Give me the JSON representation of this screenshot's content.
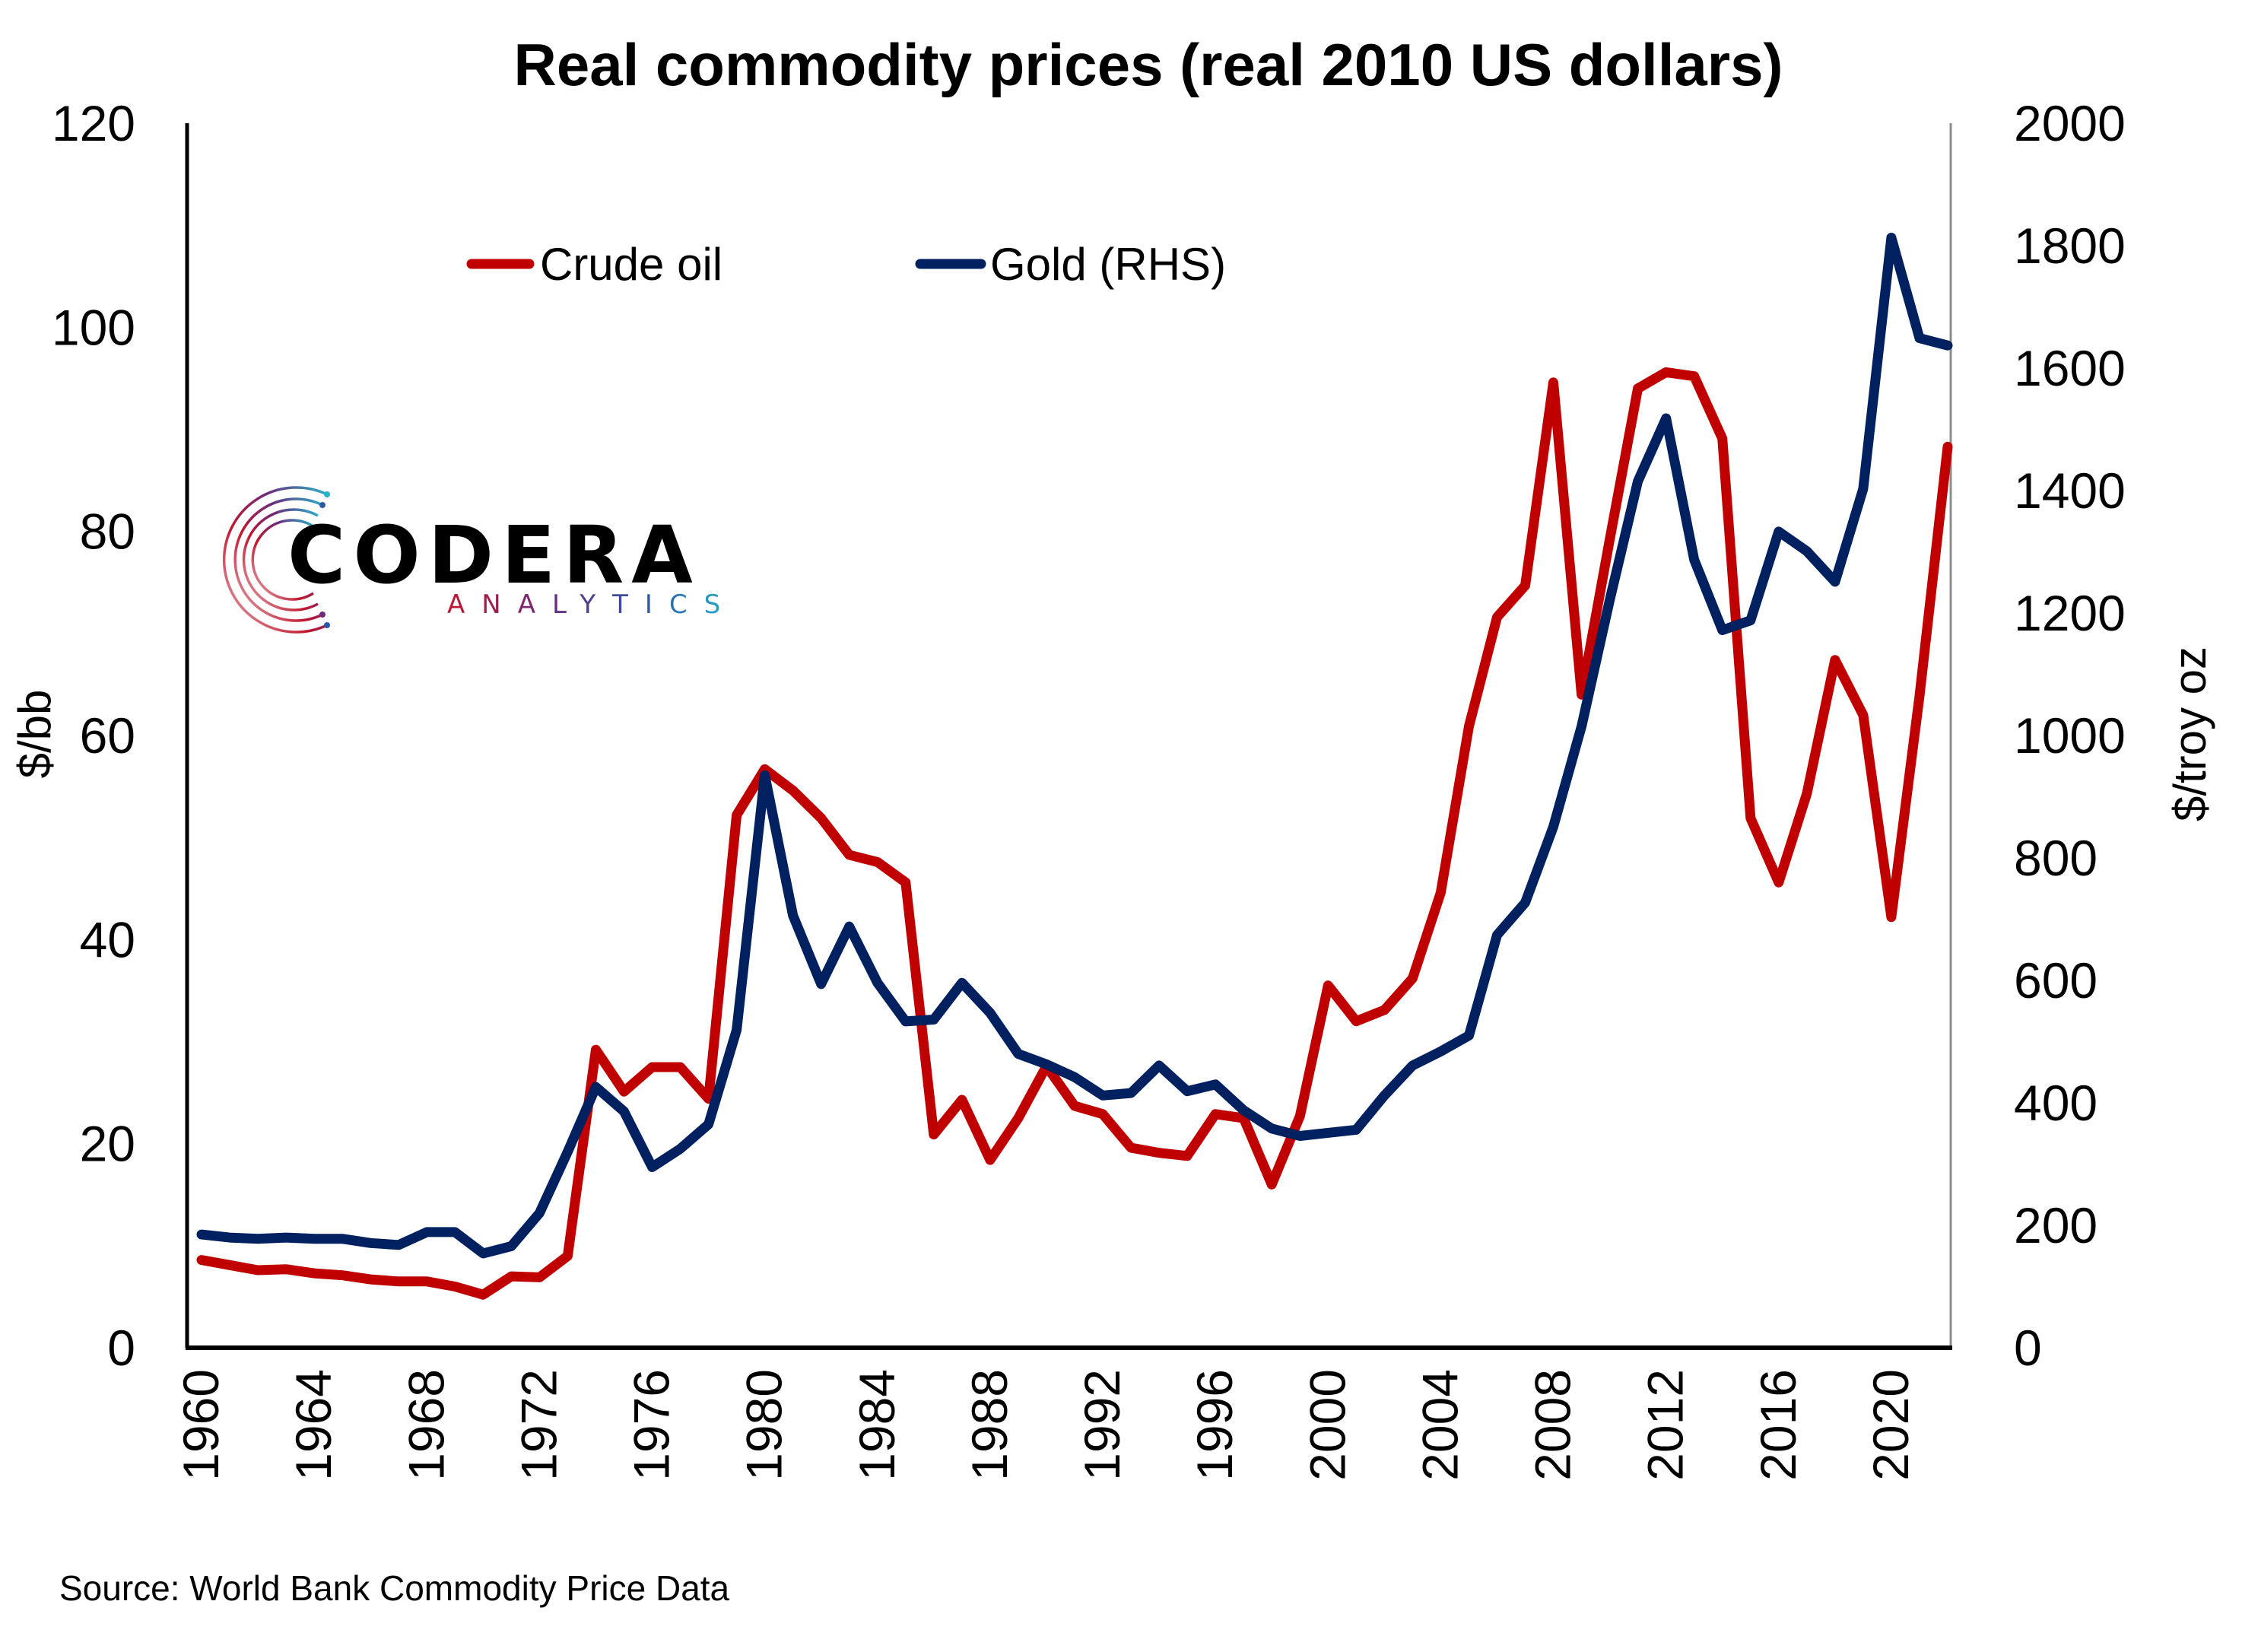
{
  "logo": {
    "word": "CODERA",
    "sub": "ANALYTICS",
    "gradient": [
      "#c0172e",
      "#6b2c7e",
      "#2b59a8",
      "#28b4c8"
    ]
  },
  "source_note": "Source: World Bank Commodity Price Data",
  "chart_data": {
    "type": "line",
    "title": "Real commodity prices (real 2010 US dollars)",
    "xlabel": "",
    "ylabel": "$/bb",
    "y2label": "$/troy oz",
    "ylim": [
      0,
      120
    ],
    "y2lim": [
      0,
      2000
    ],
    "yticks": [
      "0",
      "20",
      "40",
      "60",
      "80",
      "100",
      "120"
    ],
    "y2ticks": [
      "0",
      "200",
      "400",
      "600",
      "800",
      "1000",
      "1200",
      "1400",
      "1600",
      "1800",
      "2000"
    ],
    "xticks": [
      "1960",
      "1964",
      "1968",
      "1972",
      "1976",
      "1980",
      "1984",
      "1988",
      "1992",
      "1996",
      "2000",
      "2004",
      "2008",
      "2012",
      "2016",
      "2020"
    ],
    "grid": false,
    "legend_position": "top-left",
    "x": [
      1960,
      1961,
      1962,
      1963,
      1964,
      1965,
      1966,
      1967,
      1968,
      1969,
      1970,
      1971,
      1972,
      1973,
      1974,
      1975,
      1976,
      1977,
      1978,
      1979,
      1980,
      1981,
      1982,
      1983,
      1984,
      1985,
      1986,
      1987,
      1988,
      1989,
      1990,
      1991,
      1992,
      1993,
      1994,
      1995,
      1996,
      1997,
      1998,
      1999,
      2000,
      2001,
      2002,
      2003,
      2004,
      2005,
      2006,
      2007,
      2008,
      2009,
      2010,
      2011,
      2012,
      2013,
      2014,
      2015,
      2016,
      2017,
      2018,
      2019,
      2020,
      2021,
      2022
    ],
    "series": [
      {
        "name": "Crude oil",
        "axis": "left",
        "color": "#C00000",
        "values": [
          8.6,
          8.1,
          7.6,
          7.7,
          7.3,
          7.1,
          6.7,
          6.5,
          6.5,
          6.0,
          5.2,
          7.0,
          6.9,
          9.0,
          29.2,
          25.1,
          27.5,
          27.5,
          24.4,
          52.2,
          56.7,
          54.6,
          51.9,
          48.3,
          47.6,
          45.6,
          20.9,
          24.3,
          18.4,
          22.5,
          27.6,
          23.7,
          22.9,
          19.6,
          19.1,
          18.8,
          22.9,
          22.5,
          16.0,
          22.7,
          35.5,
          32.0,
          33.1,
          36.2,
          44.6,
          60.9,
          71.6,
          74.7,
          94.6,
          64.0,
          79.2,
          94.0,
          95.6,
          95.2,
          89.1,
          51.9,
          45.6,
          54.3,
          67.4,
          62.0,
          42.2,
          63.9,
          88.3
        ]
      },
      {
        "name": "Gold (RHS)",
        "axis": "right",
        "color": "#002060",
        "values": [
          185,
          180,
          178,
          180,
          178,
          178,
          171,
          168,
          189,
          189,
          154,
          166,
          220,
          320,
          426,
          386,
          295,
          325,
          365,
          519,
          935,
          706,
          594,
          688,
          596,
          533,
          536,
          596,
          547,
          480,
          463,
          442,
          412,
          416,
          461,
          419,
          430,
          388,
          358,
          346,
          351,
          356,
          412,
          461,
          484,
          510,
          674,
          727,
          851,
          1015,
          1221,
          1415,
          1518,
          1287,
          1172,
          1188,
          1333,
          1301,
          1251,
          1403,
          1813,
          1649,
          1637
        ]
      }
    ]
  }
}
